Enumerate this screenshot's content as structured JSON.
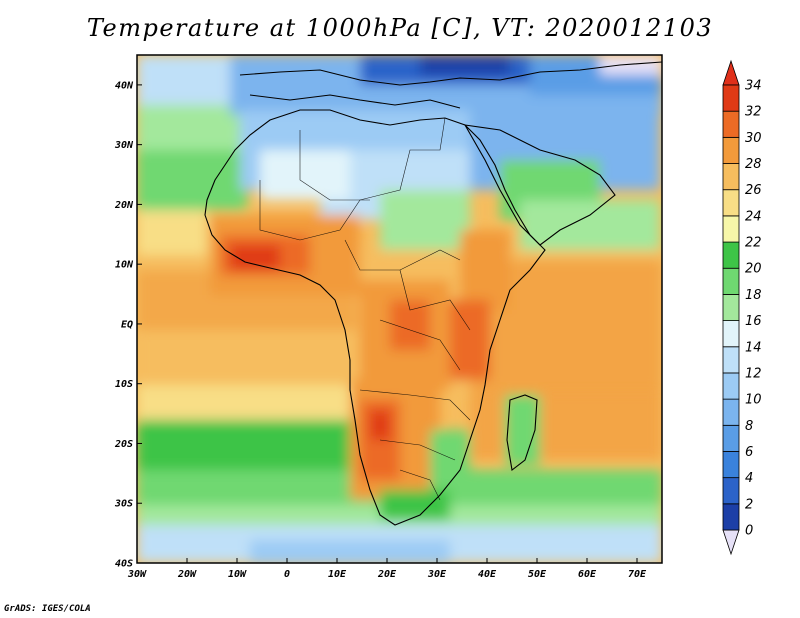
{
  "title": "Temperature at 1000hPa [C], VT: 2020012103",
  "credit": "GrADS: IGES/COLA",
  "map": {
    "lon_range": [
      -30,
      75
    ],
    "lat_range": [
      -40,
      45
    ],
    "lon_ticks": [
      {
        "value": -30,
        "label": "30W"
      },
      {
        "value": -20,
        "label": "20W"
      },
      {
        "value": -10,
        "label": "10W"
      },
      {
        "value": 0,
        "label": "0"
      },
      {
        "value": 10,
        "label": "10E"
      },
      {
        "value": 20,
        "label": "20E"
      },
      {
        "value": 30,
        "label": "30E"
      },
      {
        "value": 40,
        "label": "40E"
      },
      {
        "value": 50,
        "label": "50E"
      },
      {
        "value": 60,
        "label": "60E"
      },
      {
        "value": 70,
        "label": "70E"
      }
    ],
    "lat_ticks": [
      {
        "value": 40,
        "label": "40N"
      },
      {
        "value": 30,
        "label": "30N"
      },
      {
        "value": 20,
        "label": "20N"
      },
      {
        "value": 10,
        "label": "10N"
      },
      {
        "value": 0,
        "label": "EQ"
      },
      {
        "value": -10,
        "label": "10S"
      },
      {
        "value": -20,
        "label": "20S"
      },
      {
        "value": -30,
        "label": "30S"
      },
      {
        "value": -40,
        "label": "40S"
      }
    ]
  },
  "colorbar": {
    "levels": [
      0,
      2,
      4,
      6,
      8,
      10,
      12,
      14,
      16,
      18,
      20,
      22,
      24,
      26,
      28,
      30,
      32,
      34
    ],
    "colors": [
      "#0c1d78",
      "#1c3fa7",
      "#2c63c9",
      "#3a82dc",
      "#5a9de6",
      "#7bb4ee",
      "#9ccbf4",
      "#bfe0f8",
      "#e2f4fa",
      "#a3e89c",
      "#6fd871",
      "#3ec447",
      "#f7f7a9",
      "#f8de86",
      "#f6bd5e",
      "#f29a3b",
      "#ec6b25",
      "#e03a16",
      "#c91c0f"
    ],
    "under_color": "#e6e1f7",
    "over_color": "#e0301a"
  }
}
